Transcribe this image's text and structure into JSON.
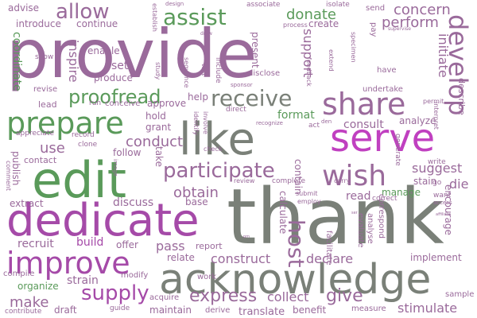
{
  "palette": {
    "purple": "#9a6a9b",
    "magenta": "#c040c0",
    "orchid": "#a54aa8",
    "green": "#5a9a5a",
    "gray": "#7a8078"
  },
  "words": {
    "provide": "provide",
    "thank": "thank",
    "acknowledge": "acknowledge",
    "dedicate": "dedicate",
    "edit": "edit",
    "improve": "improve",
    "like": "like",
    "serve": "serve",
    "share": "share",
    "prepare": "prepare",
    "participate": "participate",
    "assist": "assist",
    "allow": "allow",
    "develop": "develop",
    "wish": "wish",
    "receive": "receive",
    "supply": "supply",
    "proofread": "proofread",
    "conduct": "conduct",
    "express": "express",
    "host": "host",
    "give": "give",
    "donate": "donate",
    "concern": "concern",
    "perform": "perform",
    "initiate": "initiate",
    "support": "support",
    "obtain": "obtain",
    "make": "make",
    "collect": "collect",
    "construct": "construct",
    "declare": "declare",
    "stimulate": "stimulate",
    "use": "use",
    "inspire": "inspire",
    "coordinate": "coordinate",
    "publish": "publish",
    "recruit": "recruit",
    "build": "build",
    "pass": "pass",
    "suggest": "suggest",
    "consult": "consult",
    "format": "format",
    "strain": "strain",
    "translate": "translate",
    "organize": "organize",
    "maintain": "maintain",
    "discuss": "discuss",
    "read": "read",
    "die": "die",
    "encourage": "encourage",
    "implement": "implement",
    "calculate": "calculate",
    "set": "set",
    "produce": "produce",
    "approve": "approve",
    "help": "help",
    "hold": "hold",
    "grant": "grant",
    "follow": "follow",
    "contact": "contact",
    "extract": "extract",
    "lead": "lead",
    "relate": "relate",
    "report": "report",
    "offer": "offer",
    "take": "take",
    "contain": "contain",
    "manage": "manage",
    "stain": "stain",
    "analyze": "analyze",
    "describe": "describe",
    "present": "present",
    "create": "create",
    "continue": "continue",
    "introduce": "introduce",
    "advise": "advise",
    "enable": "enable",
    "base": "base",
    "draft": "draft",
    "benefit": "benefit",
    "sample": "sample",
    "modify": "modify",
    "compile": "compile",
    "work": "work",
    "send": "send",
    "isolate": "isolate",
    "associate": "associate",
    "process": "process",
    "pay": "pay",
    "go": "go",
    "write": "write",
    "carry": "carry",
    "review": "review",
    "complete": "complete",
    "submit": "submit",
    "employ": "employ",
    "correct": "correct",
    "want": "want",
    "access": "access",
    "measure": "measure",
    "evaluate": "evaluate",
    "analyse": "analyse",
    "correspond": "correspond",
    "facilitate": "facilitate",
    "acquire": "acquire",
    "derive": "derive",
    "contribute": "contribute",
    "guide": "guide",
    "revise": "revise",
    "appreciate": "appreciate",
    "record": "record",
    "clone": "clone",
    "run": "run",
    "conceive": "conceive",
    "show": "show",
    "study": "study",
    "sequence": "sequence",
    "test": "test",
    "include": "include",
    "disclose": "disclose",
    "identify": "identify",
    "involve": "involve",
    "check": "check",
    "direct": "direct",
    "recognize": "recognize",
    "feedback": "feedback",
    "extend": "extend",
    "have": "have",
    "undertake": "undertake",
    "permit": "permit",
    "interpret": "interpret",
    "specimen": "specimen",
    "supervise": "supervise",
    "generate": "generate",
    "establish": "establish",
    "design": "design",
    "draw": "draw",
    "sponsor": "sponsor",
    "comment": "comment",
    "image": "image",
    "act": "act",
    "den": "den",
    "affiliate": "affiliate",
    "ser": "ser",
    "pm": "pm"
  }
}
